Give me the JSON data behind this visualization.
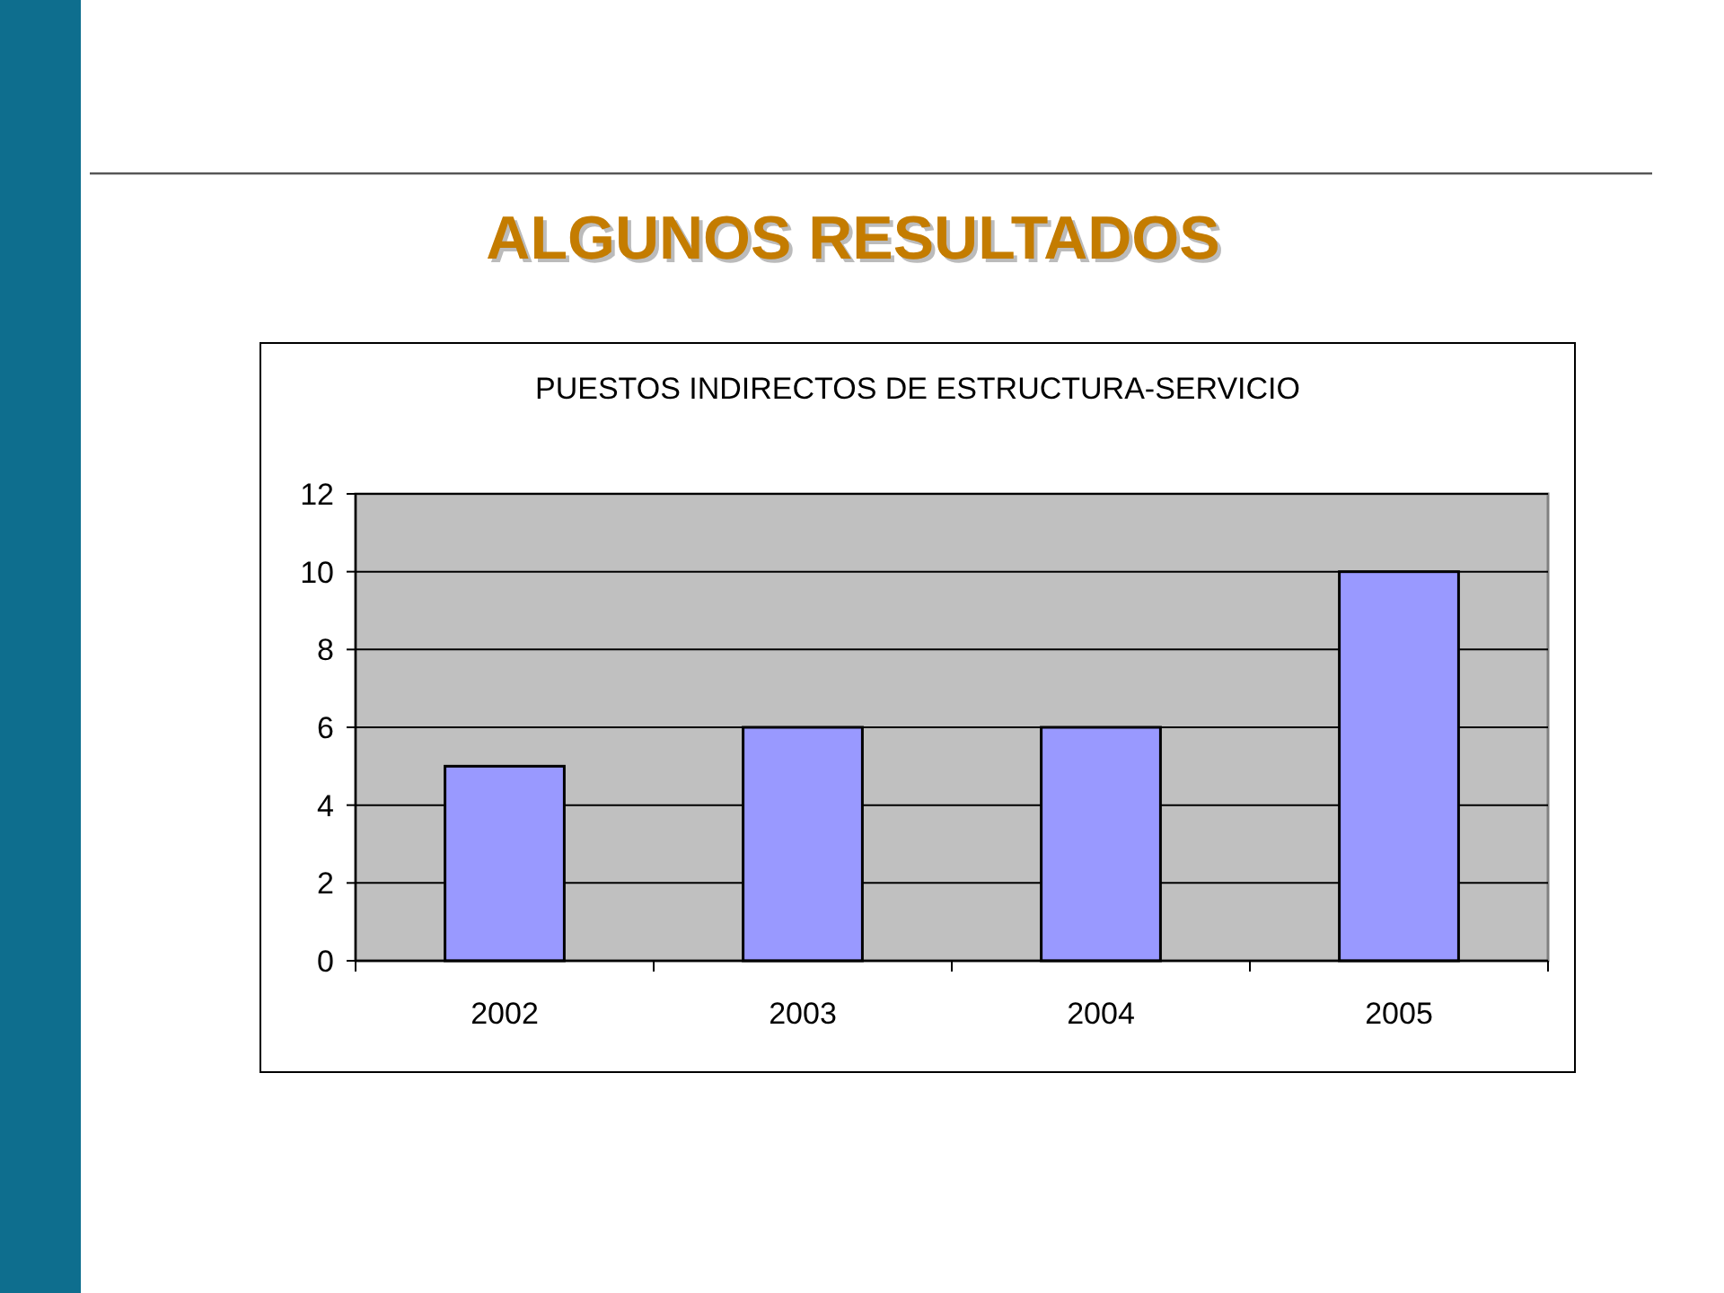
{
  "chart_data": {
    "type": "bar",
    "title": "ALGUNOS RESULTADOS",
    "subtitle": "PUESTOS INDIRECTOS DE ESTRUCTURA-SERVICIO",
    "categories": [
      "2002",
      "2003",
      "2004",
      "2005"
    ],
    "values": [
      5,
      6,
      6,
      10
    ],
    "color": "#9999ff",
    "ylim": [
      0,
      12
    ],
    "yticks": [
      0,
      2,
      4,
      6,
      8,
      10,
      12
    ],
    "grid": "y"
  }
}
